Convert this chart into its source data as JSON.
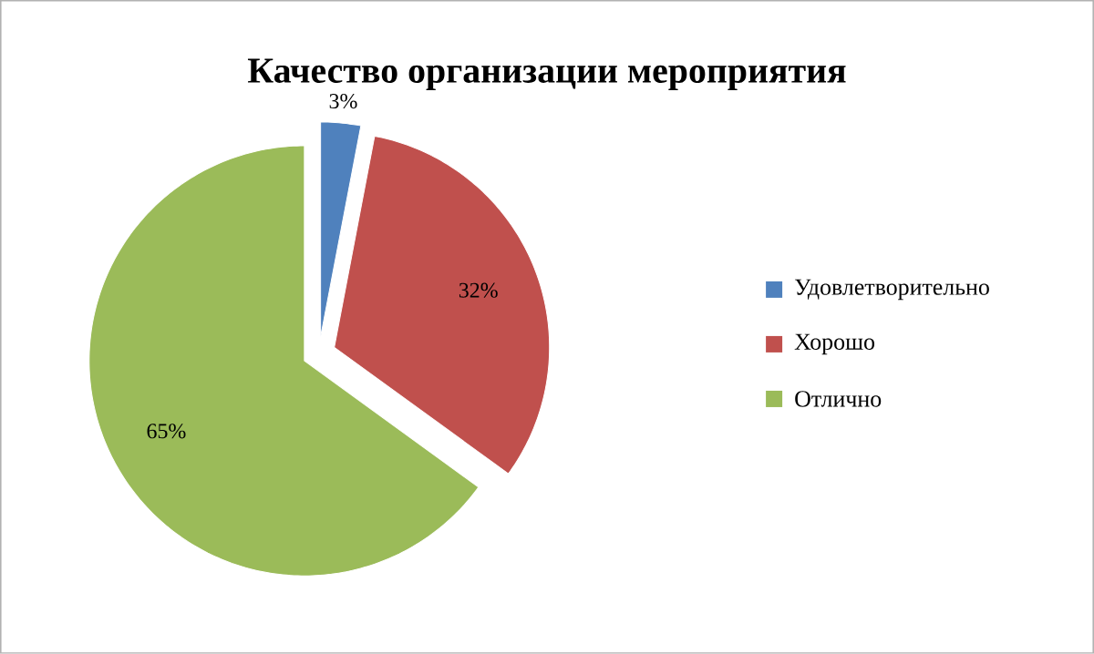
{
  "chart_data": {
    "type": "pie",
    "title": "Качество организации мероприятия",
    "categories": [
      "Удовлетворительно",
      "Хорошо",
      "Отлично"
    ],
    "values": [
      3,
      32,
      65
    ],
    "colors": [
      "#4f81bd",
      "#c0504d",
      "#9bbb59"
    ],
    "value_labels": [
      "3%",
      "32%",
      "65%"
    ],
    "legend": "right"
  }
}
